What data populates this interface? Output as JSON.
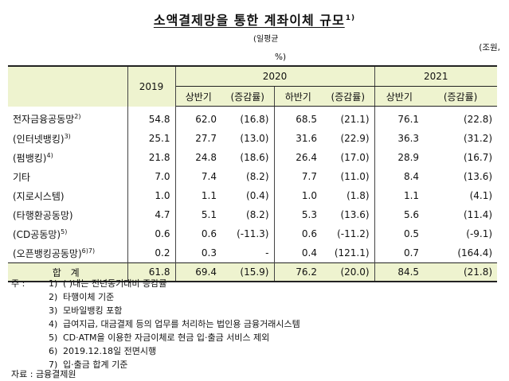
{
  "title": "소액결제망을 통한 계좌이체 규모",
  "title_sup": "1)",
  "sub_note": "(일평균",
  "unit": "(조원,",
  "unit_pct": "%)",
  "header": {
    "y2019": "2019",
    "y2020": "2020",
    "y2021": "2021",
    "h1": "상반기",
    "chg1": "(증감률)",
    "h2": "하반기",
    "chg2": "(증감률)",
    "h3": "상반기",
    "chg3": "(증감률)"
  },
  "rows": [
    {
      "label": "전자금융공동망",
      "sup": "2)",
      "v2019": "54.8",
      "h1": "62.0",
      "c1": "(16.8)",
      "h2": "68.5",
      "c2": "(21.1)",
      "h3": "76.1",
      "c3": "(22.8)"
    },
    {
      "label": "(인터넷뱅킹)",
      "sup": "3)",
      "v2019": "25.1",
      "h1": "27.7",
      "c1": "(13.0)",
      "h2": "31.6",
      "c2": "(22.9)",
      "h3": "36.3",
      "c3": "(31.2)"
    },
    {
      "label": "(펌뱅킹)",
      "sup": "4)",
      "v2019": "21.8",
      "h1": "24.8",
      "c1": "(18.6)",
      "h2": "26.4",
      "c2": "(17.0)",
      "h3": "28.9",
      "c3": "(16.7)"
    },
    {
      "label": "기타",
      "sup": "",
      "v2019": "7.0",
      "h1": "7.4",
      "c1": "(8.2)",
      "h2": "7.7",
      "c2": "(11.0)",
      "h3": "8.4",
      "c3": "(13.6)"
    },
    {
      "label": "(지로시스템)",
      "sup": "",
      "v2019": "1.0",
      "h1": "1.1",
      "c1": "(0.4)",
      "h2": "1.0",
      "c2": "(1.8)",
      "h3": "1.1",
      "c3": "(4.1)"
    },
    {
      "label": "(타행환공동망)",
      "sup": "",
      "v2019": "4.7",
      "h1": "5.1",
      "c1": "(8.2)",
      "h2": "5.3",
      "c2": "(13.6)",
      "h3": "5.6",
      "c3": "(11.4)"
    },
    {
      "label": "(CD공동망)",
      "sup": "5)",
      "v2019": "0.6",
      "h1": "0.6",
      "c1": "(-11.3)",
      "h2": "0.6",
      "c2": "(-11.2)",
      "h3": "0.5",
      "c3": "(-9.1)"
    },
    {
      "label": "(오픈뱅킹공동망)",
      "sup": "6)7)",
      "v2019": "0.2",
      "h1": "0.3",
      "c1": "-",
      "h2": "0.4",
      "c2": "(121.1)",
      "h3": "0.7",
      "c3": "(164.4)"
    }
  ],
  "total": {
    "label": "합 계",
    "v2019": "61.8",
    "h1": "69.4",
    "c1": "(15.9)",
    "h2": "76.2",
    "c2": "(20.0)",
    "h3": "84.5",
    "c3": "(21.8)"
  },
  "notes": {
    "prefix": "주 :",
    "items": [
      {
        "num": "1)",
        "text": "(    )내는 전년동기대비 증감률"
      },
      {
        "num": "2)",
        "text": "타행이체 기준"
      },
      {
        "num": "3)",
        "text": "모바일뱅킹 포함"
      },
      {
        "num": "4)",
        "text": "급여지급, 대금결제 등의 업무를 처리하는 법인용 금융거래시스템"
      },
      {
        "num": "5)",
        "text": "CD·ATM을 이용한 자금이체로 현금 입·출금 서비스 제외"
      },
      {
        "num": "6)",
        "text": "2019.12.18일 전면시행"
      },
      {
        "num": "7)",
        "text": "입·출금 합계 기준"
      }
    ]
  },
  "source": "자료 : 금융결제원"
}
